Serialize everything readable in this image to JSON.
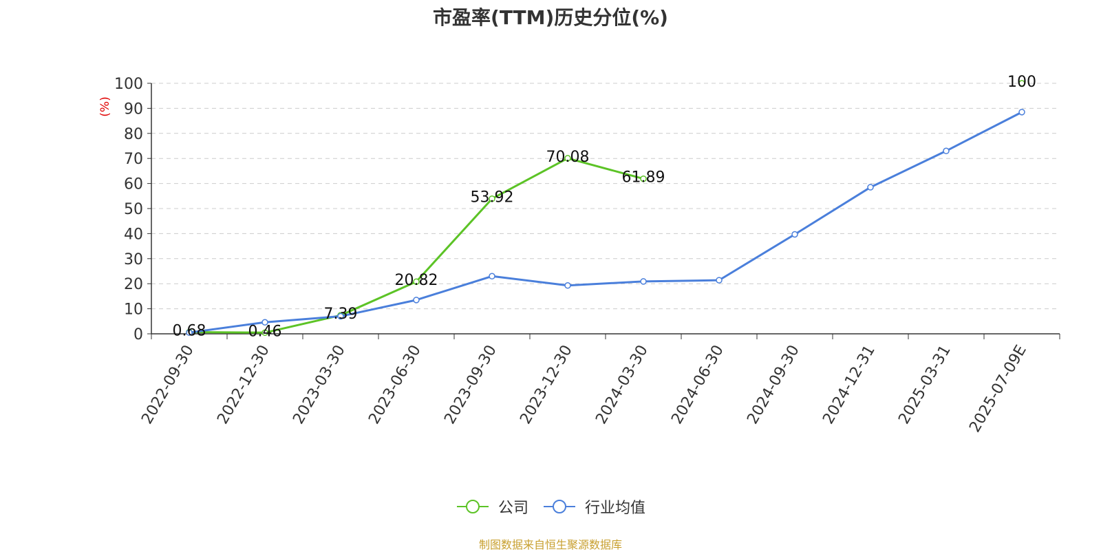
{
  "chart_data": {
    "type": "line",
    "title": "市盈率(TTM)历史分位(%)",
    "ylabel": "(%)",
    "xlabel": "",
    "ylim": [
      0,
      100
    ],
    "yticks": [
      0,
      10,
      20,
      30,
      40,
      50,
      60,
      70,
      80,
      90,
      100
    ],
    "categories": [
      "2022-09-30",
      "2022-12-30",
      "2023-03-30",
      "2023-06-30",
      "2023-09-30",
      "2023-12-30",
      "2024-03-30",
      "2024-06-30",
      "2024-09-30",
      "2024-12-31",
      "2025-03-31",
      "2025-07-09E"
    ],
    "grid": true,
    "legend_position": "bottom",
    "series": [
      {
        "name": "公司",
        "color": "#5cc326",
        "show_labels": true,
        "values": [
          0.68,
          0.46,
          7.39,
          20.82,
          53.92,
          70.08,
          61.89,
          null,
          null,
          null,
          null,
          100
        ]
      },
      {
        "name": "行业均值",
        "color": "#4a7fdb",
        "show_labels": false,
        "values": [
          0.5,
          4.6,
          7.0,
          13.5,
          23.0,
          19.3,
          20.9,
          21.4,
          39.7,
          58.5,
          73.0,
          88.5
        ]
      }
    ]
  },
  "source": "制图数据来自恒生聚源数据库",
  "colors": {
    "axis": "#333333",
    "grid": "#cccccc",
    "ylabel": "#e00000",
    "text": "#333333"
  }
}
